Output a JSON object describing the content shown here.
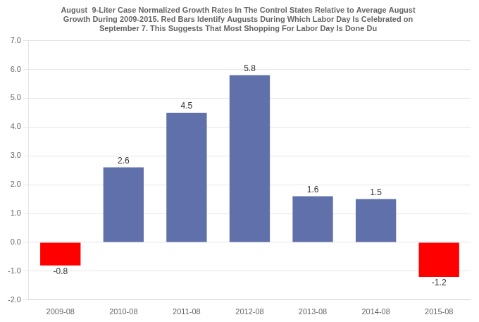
{
  "chart_data": {
    "type": "bar",
    "title": "August  9-Liter Case Normalized Growth Rates In The Control States Relative to Average August\nGrowth During 2009-2015. Red Bars Identify Augusts During Which Labor Day Is Celebrated on\nSeptember 7. This Suggests That Most Shopping For Labor Day Is Done Du",
    "categories": [
      "2009-08",
      "2010-08",
      "2011-08",
      "2012-08",
      "2013-08",
      "2014-08",
      "2015-08"
    ],
    "values": [
      -0.8,
      2.6,
      4.5,
      5.8,
      1.6,
      1.5,
      -1.2
    ],
    "colors": [
      "#ff0000",
      "#6070aa",
      "#6070aa",
      "#6070aa",
      "#6070aa",
      "#6070aa",
      "#ff0000"
    ],
    "ylim": [
      -2.0,
      7.0
    ],
    "yticks": [
      {
        "value": -2.0,
        "label": "-2.0"
      },
      {
        "value": -1.0,
        "label": "-1.0"
      },
      {
        "value": 0.0,
        "label": "0.0"
      },
      {
        "value": 1.0,
        "label": "1.0"
      },
      {
        "value": 2.0,
        "label": "2.0"
      },
      {
        "value": 3.0,
        "label": "3.0"
      },
      {
        "value": 4.0,
        "label": "4.0"
      },
      {
        "value": 5.0,
        "label": "5.0"
      },
      {
        "value": 6.0,
        "label": "6.0"
      },
      {
        "value": 7.0,
        "label": "7.0"
      }
    ],
    "grid": true,
    "data_labels": true
  }
}
